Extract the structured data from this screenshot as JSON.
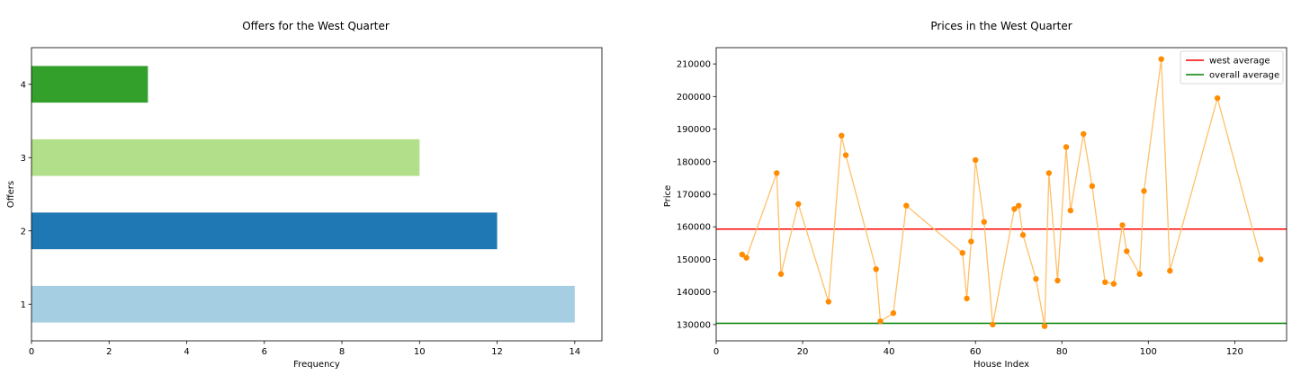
{
  "chart_data": [
    {
      "type": "bar",
      "orientation": "horizontal",
      "title": "Offers for the West Quarter",
      "xlabel": "Frequency",
      "ylabel": "Offers",
      "categories": [
        "1",
        "2",
        "3",
        "4"
      ],
      "values": [
        14,
        12,
        10,
        3
      ],
      "colors": [
        "#a6cee3",
        "#1f78b4",
        "#b2df8a",
        "#33a02c"
      ],
      "xlim": [
        0,
        14.7
      ],
      "xticks": [
        0,
        2,
        4,
        6,
        8,
        10,
        12,
        14
      ],
      "grid": false
    },
    {
      "type": "scatter",
      "title": "Prices in the West Quarter",
      "xlabel": "House Index",
      "ylabel": "Price",
      "xlim": [
        0,
        132
      ],
      "ylim": [
        125000,
        215000
      ],
      "xticks": [
        0,
        20,
        40,
        60,
        80,
        100,
        120
      ],
      "yticks": [
        130000,
        140000,
        150000,
        160000,
        170000,
        180000,
        190000,
        200000,
        210000
      ],
      "point_color": "#ff8c00",
      "line_color": "#ffc069",
      "grid": false,
      "points": [
        {
          "x": 6,
          "y": 151500
        },
        {
          "x": 7,
          "y": 150500
        },
        {
          "x": 14,
          "y": 176500
        },
        {
          "x": 15,
          "y": 145500
        },
        {
          "x": 19,
          "y": 167000
        },
        {
          "x": 26,
          "y": 137000
        },
        {
          "x": 29,
          "y": 188000
        },
        {
          "x": 30,
          "y": 182000
        },
        {
          "x": 37,
          "y": 147000
        },
        {
          "x": 38,
          "y": 131000
        },
        {
          "x": 41,
          "y": 133500
        },
        {
          "x": 44,
          "y": 166500
        },
        {
          "x": 57,
          "y": 152000
        },
        {
          "x": 58,
          "y": 138000
        },
        {
          "x": 59,
          "y": 155500
        },
        {
          "x": 60,
          "y": 180500
        },
        {
          "x": 62,
          "y": 161500
        },
        {
          "x": 64,
          "y": 130000
        },
        {
          "x": 69,
          "y": 165500
        },
        {
          "x": 70,
          "y": 166500
        },
        {
          "x": 71,
          "y": 157500
        },
        {
          "x": 74,
          "y": 144000
        },
        {
          "x": 76,
          "y": 129500
        },
        {
          "x": 77,
          "y": 176500
        },
        {
          "x": 79,
          "y": 143500
        },
        {
          "x": 81,
          "y": 184500
        },
        {
          "x": 82,
          "y": 165000
        },
        {
          "x": 85,
          "y": 188500
        },
        {
          "x": 87,
          "y": 172500
        },
        {
          "x": 90,
          "y": 143000
        },
        {
          "x": 92,
          "y": 142500
        },
        {
          "x": 94,
          "y": 160500
        },
        {
          "x": 95,
          "y": 152500
        },
        {
          "x": 98,
          "y": 145500
        },
        {
          "x": 99,
          "y": 171000
        },
        {
          "x": 103,
          "y": 211500
        },
        {
          "x": 105,
          "y": 146500
        },
        {
          "x": 116,
          "y": 199500
        },
        {
          "x": 126,
          "y": 150000
        }
      ],
      "reference_lines": [
        {
          "name": "west average",
          "y": 159300,
          "color": "#ff0000"
        },
        {
          "name": "overall average",
          "y": 130400,
          "color": "#008000"
        }
      ],
      "legend_position": "top-right"
    }
  ]
}
